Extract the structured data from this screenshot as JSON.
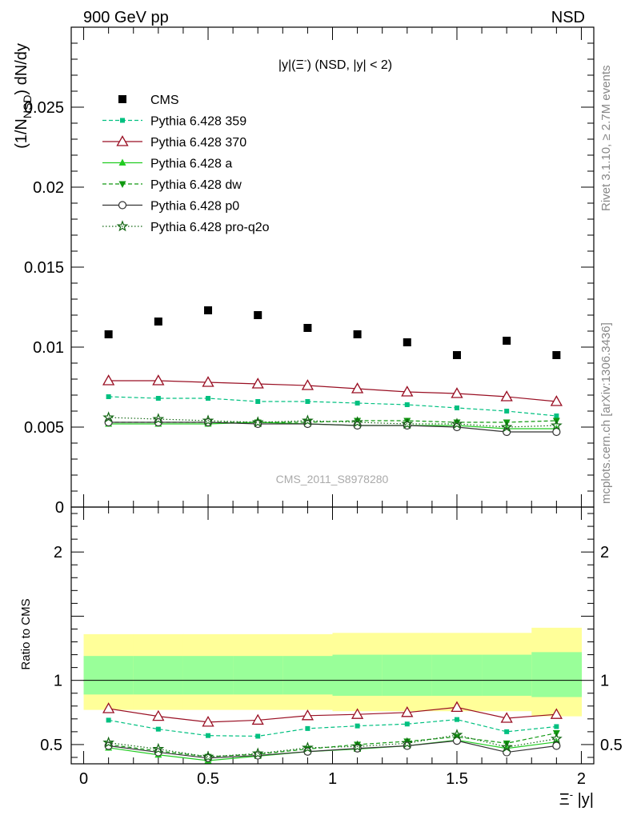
{
  "header": {
    "left": "900 GeV pp",
    "right": "NSD"
  },
  "side_text": {
    "rivet": "Rivet 3.1.10, ≥ 2.7M events",
    "mcplots": "mcplots.cern.ch [arXiv:1306.3436]"
  },
  "watermark": "CMS_2011_S8978280",
  "chart_data": [
    {
      "type": "scatter",
      "title_main": "|y|(Ξ",
      "title_sup": "-",
      "title_rest": ") (NSD, |y| < 2)",
      "ylabel_main": "(1/N",
      "ylabel_sub": "NSD",
      "ylabel_rest": ") dN/dy",
      "xlim": [
        -0.05,
        2.05
      ],
      "ylim": [
        0,
        0.03
      ],
      "yticks": [
        0,
        0.005,
        0.01,
        0.015,
        0.02,
        0.025
      ],
      "ytick_labels": [
        "0",
        "0.005",
        "0.01",
        "0.015",
        "0.02",
        "0.025"
      ],
      "legend_position": "top-left",
      "x": [
        0.1,
        0.3,
        0.5,
        0.7,
        0.9,
        1.1,
        1.3,
        1.5,
        1.7,
        1.9
      ],
      "series": [
        {
          "name": "CMS",
          "color": "#000000",
          "marker": "square",
          "line": "none",
          "values": [
            0.0108,
            0.0116,
            0.0123,
            0.012,
            0.0112,
            0.0108,
            0.0103,
            0.0095,
            0.0104,
            0.0095
          ]
        },
        {
          "name": "Pythia 6.428 359",
          "color": "#00c080",
          "marker": "small-square",
          "line": "dashed",
          "values": [
            0.0069,
            0.0068,
            0.0068,
            0.0066,
            0.0066,
            0.0065,
            0.0064,
            0.0062,
            0.006,
            0.0057
          ]
        },
        {
          "name": "Pythia 6.428 370",
          "color": "#990f23",
          "marker": "open-triangle",
          "line": "solid",
          "values": [
            0.0079,
            0.0079,
            0.0078,
            0.0077,
            0.0076,
            0.0074,
            0.0072,
            0.0071,
            0.0069,
            0.0066
          ]
        },
        {
          "name": "Pythia 6.428 a",
          "color": "#22cc22",
          "marker": "triangle",
          "line": "solid",
          "values": [
            0.0052,
            0.0052,
            0.0052,
            0.0053,
            0.0052,
            0.0051,
            0.0051,
            0.0051,
            0.0049,
            0.0049
          ]
        },
        {
          "name": "Pythia 6.428 dw",
          "color": "#119911",
          "marker": "triangle-down",
          "line": "dashed",
          "values": [
            0.0053,
            0.0053,
            0.0053,
            0.0053,
            0.0053,
            0.0054,
            0.0054,
            0.0053,
            0.0053,
            0.0054
          ]
        },
        {
          "name": "Pythia 6.428 p0",
          "color": "#333333",
          "marker": "open-circle",
          "line": "solid",
          "values": [
            0.0053,
            0.0053,
            0.0053,
            0.0052,
            0.0052,
            0.0051,
            0.0051,
            0.005,
            0.0047,
            0.0047
          ]
        },
        {
          "name": "Pythia 6.428 pro-q2o",
          "color": "#116611",
          "marker": "star",
          "line": "dotted",
          "values": [
            0.0056,
            0.0055,
            0.0054,
            0.0053,
            0.0054,
            0.0053,
            0.0052,
            0.0052,
            0.005,
            0.0051
          ]
        }
      ]
    },
    {
      "type": "line",
      "ylabel": "Ratio to CMS",
      "xlabel_main": "Ξ",
      "xlabel_sup": "-",
      "xlabel_rest": " |y|",
      "xlim": [
        -0.05,
        2.05
      ],
      "ylim": [
        0.35,
        2.35
      ],
      "xticks": [
        0,
        0.5,
        1,
        1.5,
        2
      ],
      "xtick_labels": [
        "0",
        "0.5",
        "1",
        "1.5",
        "2"
      ],
      "yticks": [
        0.5,
        1,
        2
      ],
      "ytick_labels": [
        "0.5",
        "1",
        "2"
      ],
      "bands": {
        "x_edges": [
          0.0,
          0.2,
          0.4,
          0.6,
          0.8,
          1.0,
          1.2,
          1.4,
          1.6,
          1.8,
          2.0
        ],
        "outer_lo": [
          0.77,
          0.77,
          0.77,
          0.77,
          0.77,
          0.76,
          0.76,
          0.76,
          0.76,
          0.72
        ],
        "outer_hi": [
          1.36,
          1.36,
          1.36,
          1.36,
          1.36,
          1.37,
          1.37,
          1.37,
          1.37,
          1.41
        ],
        "inner_lo": [
          0.89,
          0.89,
          0.89,
          0.89,
          0.89,
          0.88,
          0.88,
          0.88,
          0.88,
          0.87
        ],
        "inner_hi": [
          1.19,
          1.19,
          1.19,
          1.19,
          1.19,
          1.2,
          1.2,
          1.2,
          1.2,
          1.22
        ],
        "outer_color": "#ffff99",
        "inner_color": "#99ff99"
      },
      "reference_line": 1,
      "x": [
        0.1,
        0.3,
        0.5,
        0.7,
        0.9,
        1.1,
        1.3,
        1.5,
        1.7,
        1.9
      ],
      "series": [
        {
          "name": "Pythia 6.428 359",
          "values": [
            0.69,
            0.62,
            0.57,
            0.565,
            0.625,
            0.645,
            0.66,
            0.695,
            0.6,
            0.64
          ]
        },
        {
          "name": "Pythia 6.428 370",
          "values": [
            0.78,
            0.72,
            0.675,
            0.69,
            0.725,
            0.735,
            0.75,
            0.79,
            0.705,
            0.735
          ]
        },
        {
          "name": "Pythia 6.428 a",
          "values": [
            0.475,
            0.42,
            0.375,
            0.41,
            0.445,
            0.465,
            0.49,
            0.535,
            0.47,
            0.52
          ]
        },
        {
          "name": "Pythia 6.428 dw",
          "values": [
            0.5,
            0.45,
            0.405,
            0.425,
            0.465,
            0.5,
            0.525,
            0.56,
            0.51,
            0.59
          ]
        },
        {
          "name": "Pythia 6.428 p0",
          "values": [
            0.49,
            0.44,
            0.395,
            0.415,
            0.445,
            0.47,
            0.49,
            0.53,
            0.44,
            0.49
          ]
        },
        {
          "name": "Pythia 6.428 pro-q2o",
          "values": [
            0.515,
            0.465,
            0.405,
            0.43,
            0.475,
            0.485,
            0.51,
            0.575,
            0.48,
            0.545
          ]
        }
      ]
    }
  ]
}
